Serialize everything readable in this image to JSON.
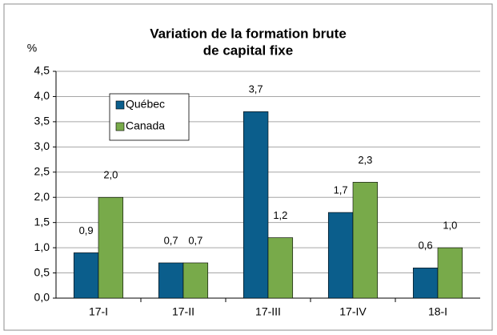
{
  "chart_data": {
    "type": "bar",
    "title": [
      "Variation de la formation brute",
      "de capital fixe"
    ],
    "y_label": "%",
    "categories": [
      "17-I",
      "17-II",
      "17-III",
      "17-IV",
      "18-I"
    ],
    "series": [
      {
        "name": "Québec",
        "color": "#0b5e8c",
        "values": [
          0.9,
          0.7,
          3.7,
          1.7,
          0.6
        ],
        "value_labels": [
          "0,9",
          "0,7",
          "3,7",
          "1,7",
          "0,6"
        ]
      },
      {
        "name": "Canada",
        "color": "#78aa4a",
        "values": [
          2.0,
          0.7,
          1.2,
          2.3,
          1.0
        ],
        "value_labels": [
          "2,0",
          "0,7",
          "1,2",
          "2,3",
          "1,0"
        ]
      }
    ],
    "ylim": [
      0,
      4.5
    ],
    "yticks": [
      {
        "value": 0,
        "label": "0,0"
      },
      {
        "value": 0.5,
        "label": "0,5"
      },
      {
        "value": 1,
        "label": "1,0"
      },
      {
        "value": 1.5,
        "label": "1,5"
      },
      {
        "value": 2,
        "label": "2,0"
      },
      {
        "value": 2.5,
        "label": "2,5"
      },
      {
        "value": 3,
        "label": "3,0"
      },
      {
        "value": 3.5,
        "label": "3,5"
      },
      {
        "value": 4,
        "label": "4,0"
      },
      {
        "value": 4.5,
        "label": "4,5"
      }
    ],
    "grid": true
  }
}
